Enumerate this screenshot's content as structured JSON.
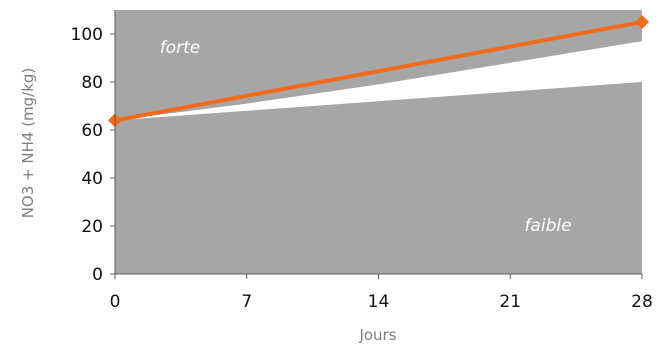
{
  "chart_data": {
    "type": "line",
    "xlabel": "Jours",
    "ylabel": "NO3 + NH4 (mg/kg)",
    "xlim": [
      0,
      28
    ],
    "ylim": [
      0,
      110
    ],
    "x_ticks": [
      0,
      7,
      14,
      21,
      28
    ],
    "y_ticks": [
      0,
      20,
      40,
      60,
      80,
      100
    ],
    "bands": [
      {
        "label": "forte",
        "description": "upper shaded region (above the upper boundary)",
        "boundary": {
          "x": [
            0,
            7,
            14,
            21,
            28
          ],
          "y": [
            64,
            71,
            79,
            88,
            97
          ]
        },
        "color": "#a6a6a6"
      },
      {
        "label": "faible",
        "description": "lower shaded region (below the lower boundary)",
        "boundary": {
          "x": [
            0,
            7,
            14,
            21,
            28
          ],
          "y": [
            64,
            68,
            72,
            76,
            80
          ]
        },
        "color": "#a6a6a6"
      }
    ],
    "series": [
      {
        "x": [
          0,
          28
        ],
        "y": [
          64,
          105
        ],
        "color": "#f26b1d",
        "marker": "diamond"
      }
    ],
    "annotations": [
      "forte",
      "faible"
    ],
    "grid": false,
    "legend": "none"
  }
}
